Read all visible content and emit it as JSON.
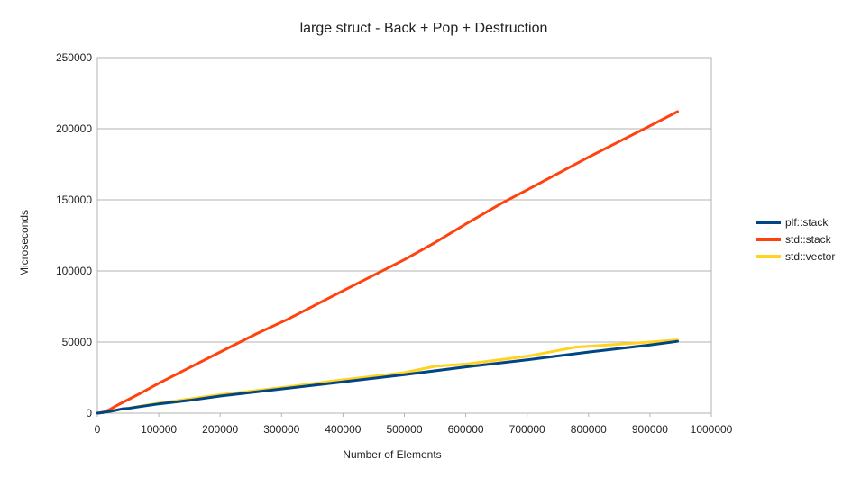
{
  "chart_data": {
    "type": "line",
    "title": "large struct - Back + Pop + Destruction",
    "xlabel": "Number of Elements",
    "ylabel": "Microseconds",
    "xlim": [
      0,
      1000000
    ],
    "ylim": [
      0,
      250000
    ],
    "x_ticks": [
      0,
      100000,
      200000,
      300000,
      400000,
      500000,
      600000,
      700000,
      800000,
      900000,
      1000000
    ],
    "y_ticks": [
      0,
      50000,
      100000,
      150000,
      200000,
      250000
    ],
    "grid": "horizontal",
    "legend_position": "right",
    "series": [
      {
        "name": "plf::stack",
        "color": "#004586",
        "x": [
          0,
          10000,
          20000,
          30000,
          40000,
          50000,
          60000,
          100000,
          150000,
          200000,
          300000,
          400000,
          500000,
          600000,
          700000,
          800000,
          900000,
          945000
        ],
        "y": [
          0,
          500,
          1200,
          2000,
          3000,
          3300,
          4000,
          6500,
          9000,
          12000,
          17000,
          22000,
          27000,
          32500,
          37500,
          43000,
          48000,
          50500
        ]
      },
      {
        "name": "std::stack",
        "color": "#ff420e",
        "x": [
          0,
          10000,
          20000,
          30000,
          50000,
          70000,
          100000,
          150000,
          200000,
          260000,
          310000,
          400000,
          500000,
          550000,
          600000,
          660000,
          700000,
          800000,
          900000,
          945000
        ],
        "y": [
          0,
          800,
          2500,
          5000,
          9500,
          14000,
          21000,
          32000,
          43000,
          56000,
          66000,
          86000,
          108000,
          120000,
          133000,
          148000,
          157000,
          180000,
          202000,
          212000
        ]
      },
      {
        "name": "std::vector",
        "color": "#ffd320",
        "x": [
          0,
          10000,
          20000,
          30000,
          40000,
          50000,
          60000,
          100000,
          150000,
          200000,
          300000,
          400000,
          500000,
          550000,
          600000,
          700000,
          780000,
          800000,
          900000,
          945000
        ],
        "y": [
          0,
          500,
          1200,
          2000,
          2800,
          3400,
          4200,
          7000,
          10000,
          13000,
          18000,
          23500,
          28500,
          33000,
          34500,
          40000,
          46500,
          47000,
          50000,
          51500
        ]
      }
    ]
  }
}
